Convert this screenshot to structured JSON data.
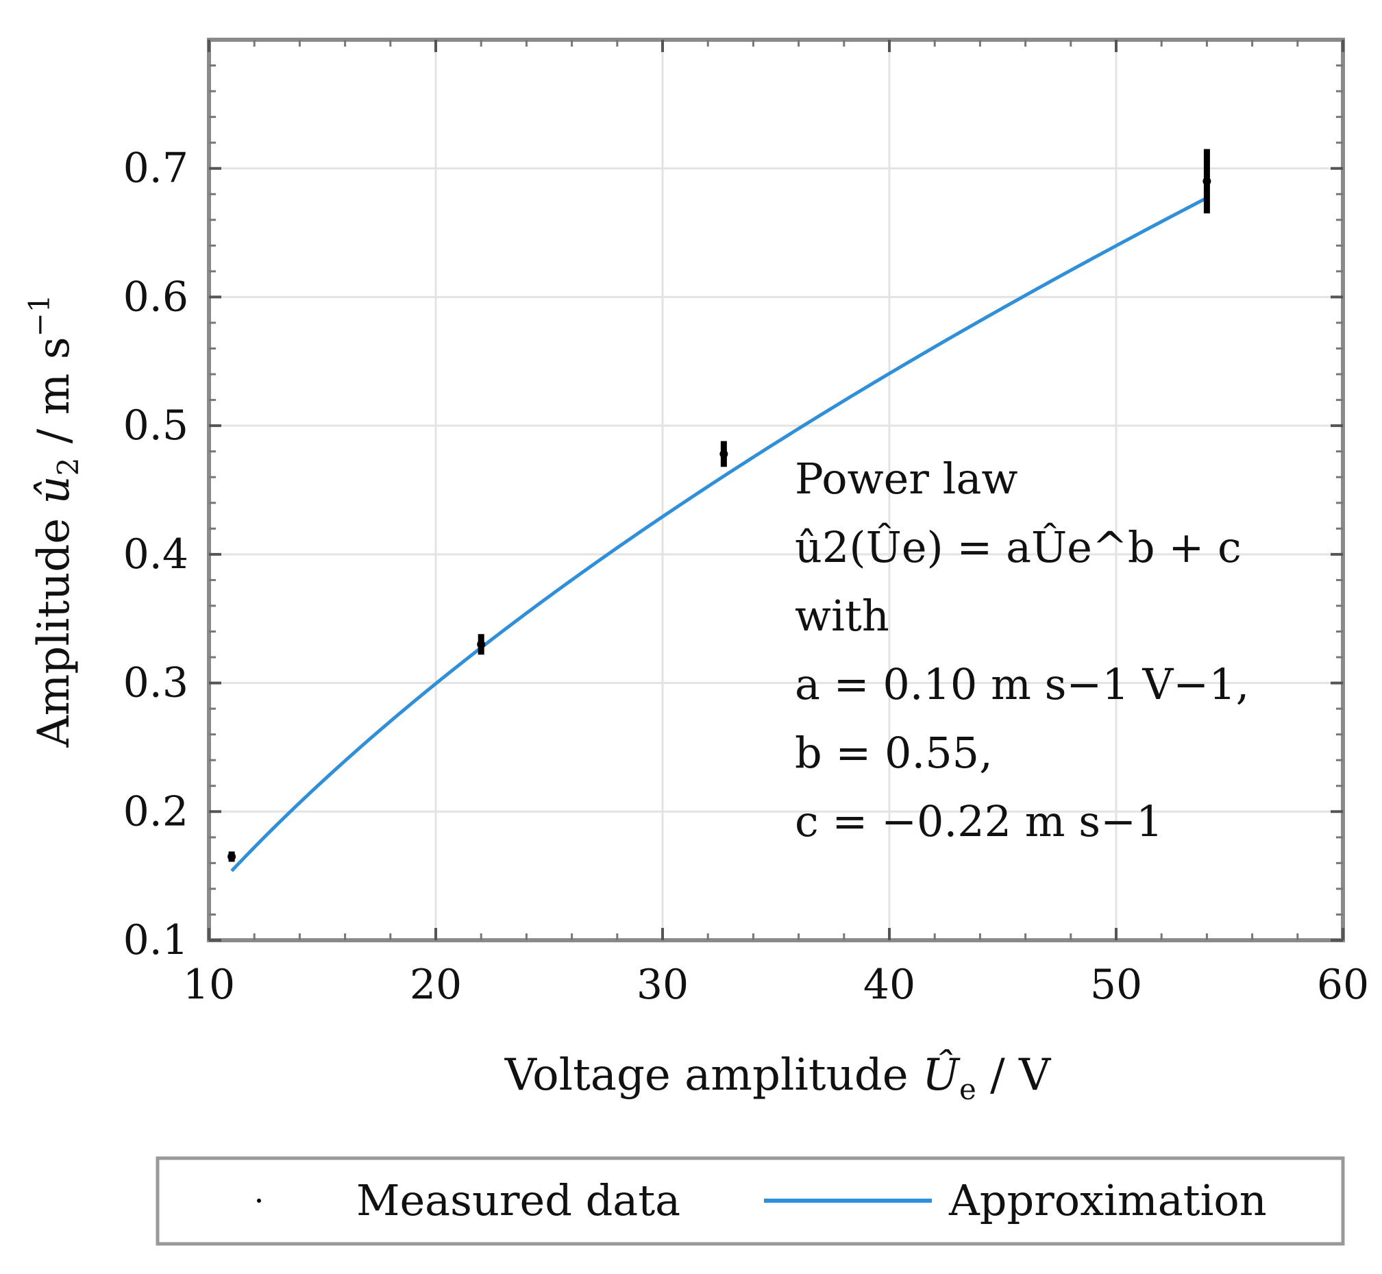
{
  "chart_data": {
    "type": "line",
    "xlabel": "Voltage amplitude Ûe / V",
    "xlabel_parts": {
      "prefix": "Voltage amplitude ",
      "symbol": "Û",
      "subscript": "e",
      "unit": " / V"
    },
    "ylabel": "Amplitude û2 / m s−1",
    "ylabel_parts": {
      "prefix": "Amplitude ",
      "symbol": "û",
      "subscript": "2",
      "unit": " / m s",
      "unit_sup": "−1"
    },
    "xlim": [
      10,
      60
    ],
    "ylim": [
      0.1,
      0.8
    ],
    "xticks": [
      10,
      20,
      30,
      40,
      50,
      60
    ],
    "xtick_labels": [
      "10",
      "20",
      "30",
      "40",
      "50",
      "60"
    ],
    "yticks": [
      0.1,
      0.2,
      0.3,
      0.4,
      0.5,
      0.6,
      0.7
    ],
    "ytick_labels": [
      "0.1",
      "0.2",
      "0.3",
      "0.4",
      "0.5",
      "0.6",
      "0.7"
    ],
    "grid": true,
    "legend_placement": "bottom-outside",
    "series": [
      {
        "name": "Measured data",
        "kind": "scatter",
        "color": "#000000",
        "points": [
          {
            "x": 11.0,
            "y": 0.165,
            "err": 0.004
          },
          {
            "x": 22.0,
            "y": 0.33,
            "err": 0.008
          },
          {
            "x": 32.7,
            "y": 0.478,
            "err": 0.01
          },
          {
            "x": 54.0,
            "y": 0.69,
            "err": 0.025
          }
        ]
      },
      {
        "name": "Approximation",
        "kind": "line",
        "color": "#2f8fd8",
        "model": {
          "a": 0.1,
          "b": 0.55,
          "c": -0.22
        },
        "x_range": [
          11.0,
          54.0
        ]
      }
    ],
    "annotation": {
      "lines": [
        "Power law",
        "û2(Ûe) = aÛe^b + c",
        "with",
        "a = 0.10 m s−1 V−1,",
        "b = 0.55,",
        "c = −0.22 m s−1"
      ]
    }
  },
  "legend": {
    "items": [
      {
        "label": "Measured data"
      },
      {
        "label": "Approximation"
      }
    ]
  }
}
